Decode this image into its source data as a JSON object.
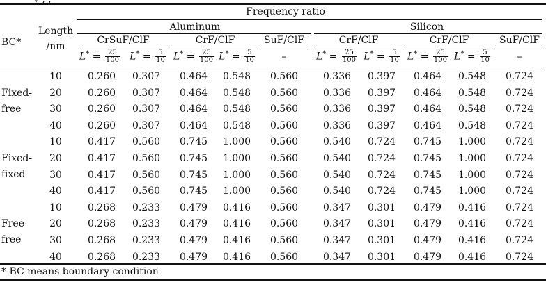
{
  "header": {
    "top_title_partial": "y            ,                  ,           ",
    "frequency_ratio": "Frequency ratio",
    "bc_label": "BC*",
    "length_label_1": "Length",
    "length_label_2": "/nm",
    "aluminum": "Aluminum",
    "silicon": "Silicon",
    "groups": [
      "CrSuF/ClF",
      "CrF/ClF",
      "SuF/ClF",
      "CrF/ClF",
      "CrF/ClF",
      "SuF/ClF"
    ],
    "lstar_sym": "L",
    "eq": " = ",
    "frac_a_num": "25",
    "frac_a_den": "100",
    "frac_b_num": "5",
    "frac_b_den": "10",
    "dash": "–"
  },
  "bc_groups": [
    {
      "line1": "Fixed-",
      "line2": "free"
    },
    {
      "line1": "Fixed-",
      "line2": "fixed"
    },
    {
      "line1": "Free-",
      "line2": "free"
    }
  ],
  "rows": [
    {
      "len": "10",
      "v": [
        "0.260",
        "0.307",
        "0.464",
        "0.548",
        "0.560",
        "0.336",
        "0.397",
        "0.464",
        "0.548",
        "0.724"
      ]
    },
    {
      "len": "20",
      "v": [
        "0.260",
        "0.307",
        "0.464",
        "0.548",
        "0.560",
        "0.336",
        "0.397",
        "0.464",
        "0.548",
        "0.724"
      ]
    },
    {
      "len": "30",
      "v": [
        "0.260",
        "0.307",
        "0.464",
        "0.548",
        "0.560",
        "0.336",
        "0.397",
        "0.464",
        "0.548",
        "0.724"
      ]
    },
    {
      "len": "40",
      "v": [
        "0.260",
        "0.307",
        "0.464",
        "0.548",
        "0.560",
        "0.336",
        "0.397",
        "0.464",
        "0.548",
        "0.724"
      ]
    },
    {
      "len": "10",
      "v": [
        "0.417",
        "0.560",
        "0.745",
        "1.000",
        "0.560",
        "0.540",
        "0.724",
        "0.745",
        "1.000",
        "0.724"
      ]
    },
    {
      "len": "20",
      "v": [
        "0.417",
        "0.560",
        "0.745",
        "1.000",
        "0.560",
        "0.540",
        "0.724",
        "0.745",
        "1.000",
        "0.724"
      ]
    },
    {
      "len": "30",
      "v": [
        "0.417",
        "0.560",
        "0.745",
        "1.000",
        "0.560",
        "0.540",
        "0.724",
        "0.745",
        "1.000",
        "0.724"
      ]
    },
    {
      "len": "40",
      "v": [
        "0.417",
        "0.560",
        "0.745",
        "1.000",
        "0.560",
        "0.540",
        "0.724",
        "0.745",
        "1.000",
        "0.724"
      ]
    },
    {
      "len": "10",
      "v": [
        "0.268",
        "0.233",
        "0.479",
        "0.416",
        "0.560",
        "0.347",
        "0.301",
        "0.479",
        "0.416",
        "0.724"
      ]
    },
    {
      "len": "20",
      "v": [
        "0.268",
        "0.233",
        "0.479",
        "0.416",
        "0.560",
        "0.347",
        "0.301",
        "0.479",
        "0.416",
        "0.724"
      ]
    },
    {
      "len": "30",
      "v": [
        "0.268",
        "0.233",
        "0.479",
        "0.416",
        "0.560",
        "0.347",
        "0.301",
        "0.479",
        "0.416",
        "0.724"
      ]
    },
    {
      "len": "40",
      "v": [
        "0.268",
        "0.233",
        "0.479",
        "0.416",
        "0.560",
        "0.347",
        "0.301",
        "0.479",
        "0.416",
        "0.724"
      ]
    }
  ],
  "footnote": "* BC means boundary condition"
}
